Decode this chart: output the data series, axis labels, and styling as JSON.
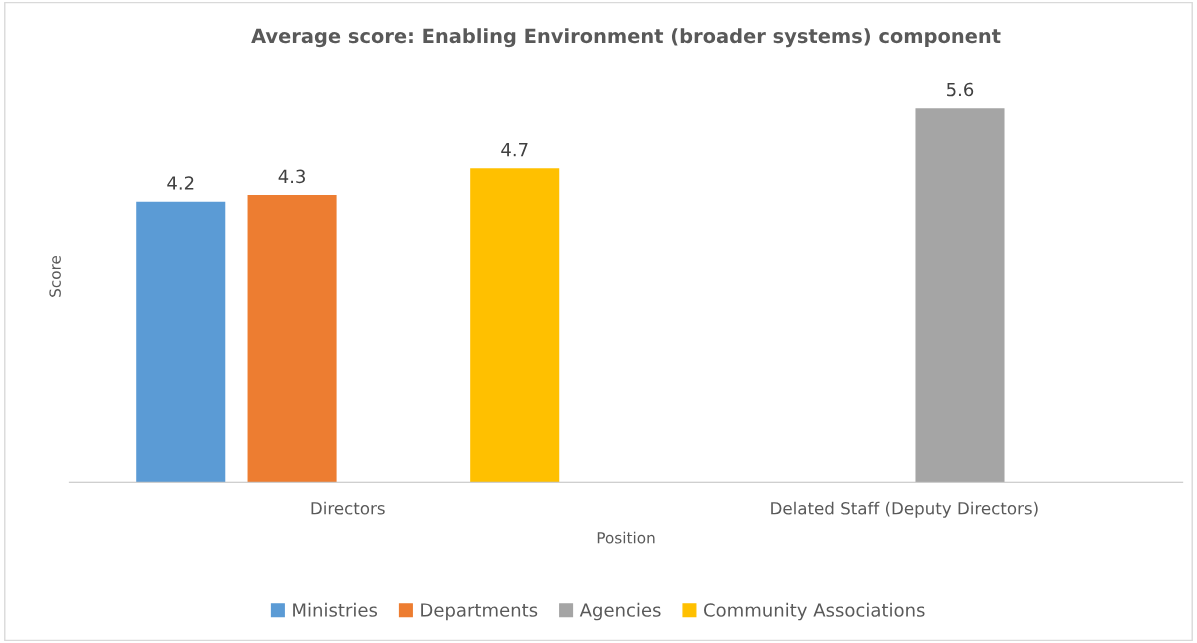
{
  "chart_data": {
    "type": "bar",
    "title": "Average score: Enabling Environment (broader systems) component",
    "xlabel": "Position",
    "ylabel": "Score",
    "categories": [
      "Directors",
      "Delated Staff (Deputy Directors)"
    ],
    "series": [
      {
        "name": "Ministries",
        "color": "#5b9bd5",
        "values": [
          4.2,
          null
        ]
      },
      {
        "name": "Departments",
        "color": "#ed7d31",
        "values": [
          4.3,
          null
        ]
      },
      {
        "name": "Agencies",
        "color": "#a5a5a5",
        "values": [
          null,
          5.6
        ]
      },
      {
        "name": "Community Associations",
        "color": "#ffc000",
        "values": [
          4.7,
          null
        ]
      }
    ],
    "data_labels": true,
    "legend": "bottom",
    "grid": false,
    "tick_labels": "x"
  }
}
